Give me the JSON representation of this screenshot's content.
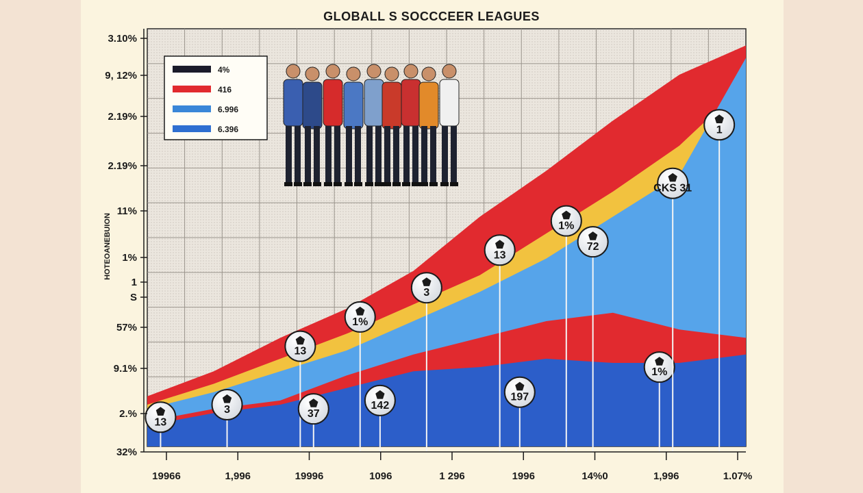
{
  "chart_data": {
    "type": "area",
    "title": "GLOBALL S SOCCCEER LEAGUES",
    "ylabel": "HOTEOANEBUION",
    "y_tick_labels": [
      "3.10%",
      "9, 12%",
      "2.19%",
      "2.19%",
      "11%",
      "1%",
      "1",
      "S",
      "57%",
      "9.1%",
      "2.%",
      "32%"
    ],
    "x_tick_labels": [
      "19966",
      "1,996",
      "19996",
      "1096",
      "1 296",
      "1996",
      "14%0",
      "1,996",
      "1.07%"
    ],
    "legend": {
      "placement": "top-left",
      "entries": [
        {
          "label": "4%",
          "color": "#1b1b2a"
        },
        {
          "label": "416",
          "color": "#e12a2f"
        },
        {
          "label": "6.996",
          "color": "#3a86d8"
        },
        {
          "label": "6.396",
          "color": "#2f6fd1"
        }
      ]
    },
    "x": [
      0,
      1,
      2,
      3,
      4,
      5,
      6,
      7,
      8,
      9
    ],
    "series": [
      {
        "color": "#e12a2f",
        "values": [
          0.12,
          0.18,
          0.26,
          0.33,
          0.42,
          0.55,
          0.66,
          0.78,
          0.89,
          0.96
        ]
      },
      {
        "color": "#f2c23f",
        "values": [
          0.1,
          0.15,
          0.21,
          0.27,
          0.34,
          0.41,
          0.51,
          0.61,
          0.72,
          0.87
        ]
      },
      {
        "color": "#56a4ea",
        "values": [
          0.09,
          0.13,
          0.18,
          0.23,
          0.3,
          0.37,
          0.45,
          0.55,
          0.65,
          0.93
        ]
      },
      {
        "color": "#e12a2f",
        "values": [
          0.06,
          0.09,
          0.11,
          0.17,
          0.22,
          0.26,
          0.3,
          0.32,
          0.28,
          0.26
        ]
      },
      {
        "color": "#2c5ec9",
        "values": [
          0.05,
          0.08,
          0.1,
          0.14,
          0.18,
          0.19,
          0.21,
          0.2,
          0.2,
          0.22
        ]
      }
    ],
    "markers": [
      {
        "label": "13",
        "x": 0.2,
        "y": 0.07
      },
      {
        "label": "3",
        "x": 1.2,
        "y": 0.1
      },
      {
        "label": "13",
        "x": 2.3,
        "y": 0.24
      },
      {
        "label": "37",
        "x": 2.5,
        "y": 0.09
      },
      {
        "label": "1%",
        "x": 3.2,
        "y": 0.31
      },
      {
        "label": "142",
        "x": 3.5,
        "y": 0.11
      },
      {
        "label": "3",
        "x": 4.2,
        "y": 0.38
      },
      {
        "label": "13",
        "x": 5.3,
        "y": 0.47
      },
      {
        "label": "1%",
        "x": 6.3,
        "y": 0.54
      },
      {
        "label": "72",
        "x": 6.7,
        "y": 0.49
      },
      {
        "label": "1%",
        "x": 7.7,
        "y": 0.19
      },
      {
        "label": "CKS 31",
        "x": 7.9,
        "y": 0.63
      },
      {
        "label": "197",
        "x": 5.6,
        "y": 0.13
      },
      {
        "label": "1",
        "x": 8.6,
        "y": 0.77
      }
    ],
    "grid": true
  }
}
